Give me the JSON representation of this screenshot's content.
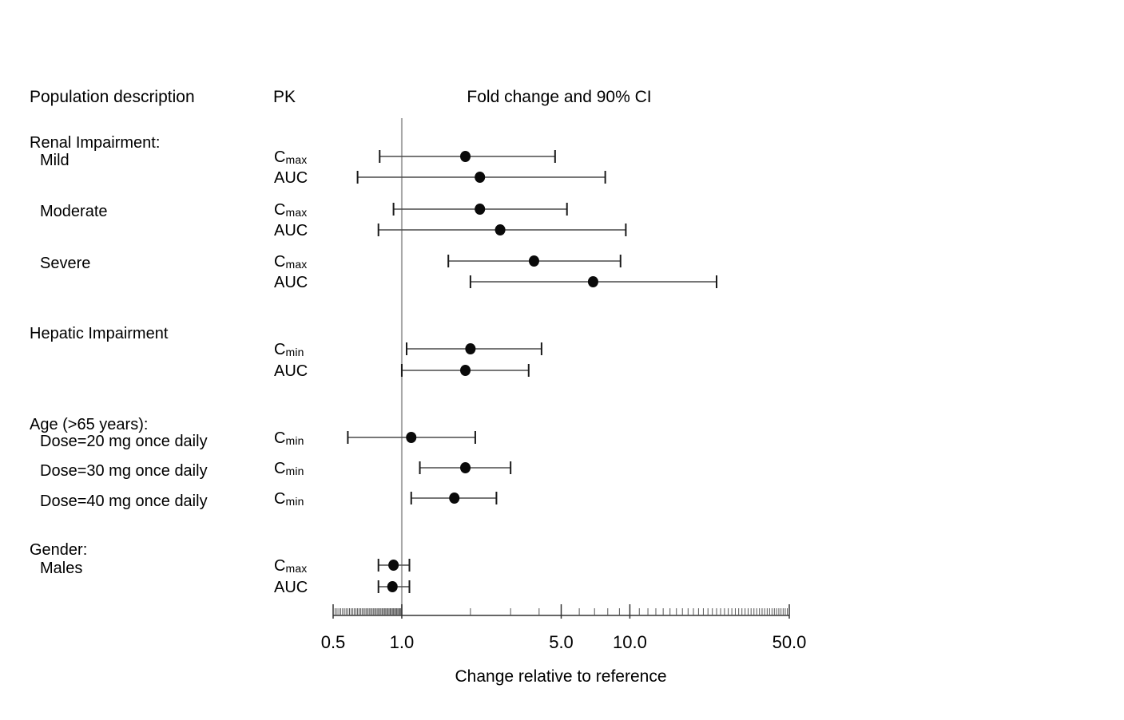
{
  "header": {
    "population_col": "Population description",
    "pk_col": "PK",
    "chart_col": "Fold change and 90% CI"
  },
  "chart_data": {
    "type": "forest",
    "title": "Fold change and 90% CI",
    "xlabel": "Change relative to reference",
    "x_scale": "log",
    "xlim": [
      0.5,
      50
    ],
    "x_ticks": [
      0.5,
      1.0,
      5.0,
      10.0,
      50.0
    ],
    "x_tick_labels": [
      "0.5",
      "1.0",
      "5.0",
      "10.0",
      "50.0"
    ],
    "reference_line": 1.0,
    "ci_level": "90% CI",
    "grid": false,
    "colors": {
      "marker": "#0a0a0a",
      "ci_line": "#4a4a4a",
      "reference_line": "#a8a8a8",
      "axis": "#333333"
    },
    "sections": [
      {
        "label": "Renal Impairment:"
      },
      {
        "label": "Hepatic Impairment"
      },
      {
        "label": "Age (>65 years):"
      },
      {
        "label": "Gender:"
      }
    ],
    "rows": [
      {
        "section_index": 0,
        "population": "Mild",
        "pk": "Cmax",
        "pk_text": "C",
        "pk_sub": "max",
        "estimate": 1.9,
        "ci_lower": 0.8,
        "ci_upper": 4.7
      },
      {
        "pk": "AUC",
        "pk_text": "AUC",
        "pk_sub": "",
        "estimate": 2.2,
        "ci_lower": 0.64,
        "ci_upper": 7.8
      },
      {
        "population": "Moderate",
        "pk": "Cmax",
        "pk_text": "C",
        "pk_sub": "max",
        "estimate": 2.2,
        "ci_lower": 0.92,
        "ci_upper": 5.3
      },
      {
        "pk": "AUC",
        "pk_text": "AUC",
        "pk_sub": "",
        "estimate": 2.7,
        "ci_lower": 0.79,
        "ci_upper": 9.6
      },
      {
        "population": "Severe",
        "pk": "Cmax",
        "pk_text": "C",
        "pk_sub": "max",
        "estimate": 3.8,
        "ci_lower": 1.6,
        "ci_upper": 9.1
      },
      {
        "pk": "AUC",
        "pk_text": "AUC",
        "pk_sub": "",
        "estimate": 6.9,
        "ci_lower": 2.0,
        "ci_upper": 24
      },
      {
        "section_index": 1,
        "pk": "Cmin",
        "pk_text": "C",
        "pk_sub": "min",
        "estimate": 2.0,
        "ci_lower": 1.05,
        "ci_upper": 4.1
      },
      {
        "pk": "AUC",
        "pk_text": "AUC",
        "pk_sub": "",
        "estimate": 1.9,
        "ci_lower": 1.0,
        "ci_upper": 3.6
      },
      {
        "section_index": 2,
        "population": "Dose=20 mg once daily",
        "pk": "Cmin",
        "pk_text": "C",
        "pk_sub": "min",
        "estimate": 1.1,
        "ci_lower": 0.58,
        "ci_upper": 2.1
      },
      {
        "population": "Dose=30 mg once daily",
        "pk": "Cmin",
        "pk_text": "C",
        "pk_sub": "min",
        "estimate": 1.9,
        "ci_lower": 1.2,
        "ci_upper": 3.0
      },
      {
        "population": "Dose=40 mg once daily",
        "pk": "Cmin",
        "pk_text": "C",
        "pk_sub": "min",
        "estimate": 1.7,
        "ci_lower": 1.1,
        "ci_upper": 2.6
      },
      {
        "section_index": 3,
        "population": "Males",
        "pk": "Cmax",
        "pk_text": "C",
        "pk_sub": "max",
        "estimate": 0.92,
        "ci_lower": 0.79,
        "ci_upper": 1.08
      },
      {
        "pk": "AUC",
        "pk_text": "AUC",
        "pk_sub": "",
        "estimate": 0.91,
        "ci_lower": 0.79,
        "ci_upper": 1.08
      }
    ]
  }
}
